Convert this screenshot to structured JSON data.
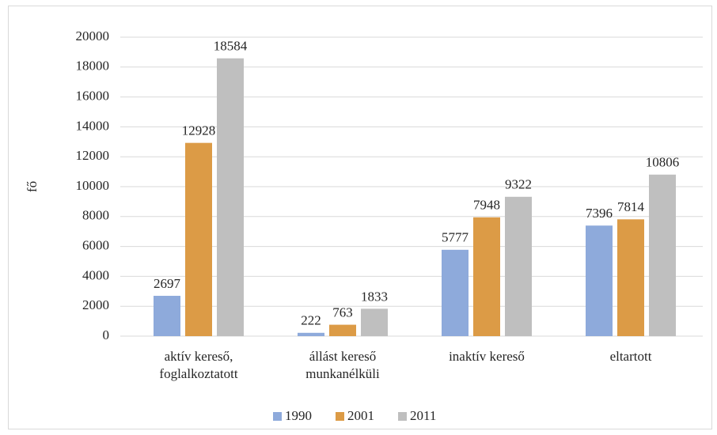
{
  "chart_data": {
    "type": "bar",
    "y_label": "fő",
    "categories": [
      "aktív kereső, foglalkoztatott",
      "állást kereső munkanélküli",
      "inaktív kereső",
      "eltartott"
    ],
    "series": [
      {
        "name": "1990",
        "color": "#8eaadb",
        "values": [
          2697,
          222,
          5777,
          7396
        ]
      },
      {
        "name": "2001",
        "color": "#dc9b46",
        "values": [
          12928,
          763,
          7948,
          7814
        ]
      },
      {
        "name": "2011",
        "color": "#bfbfbf",
        "values": [
          18584,
          1833,
          9322,
          10806
        ]
      }
    ],
    "ylim": [
      0,
      20000
    ],
    "yticks": [
      0,
      2000,
      4000,
      6000,
      8000,
      10000,
      12000,
      14000,
      16000,
      18000,
      20000
    ],
    "grid": true,
    "legend": "bottom"
  }
}
